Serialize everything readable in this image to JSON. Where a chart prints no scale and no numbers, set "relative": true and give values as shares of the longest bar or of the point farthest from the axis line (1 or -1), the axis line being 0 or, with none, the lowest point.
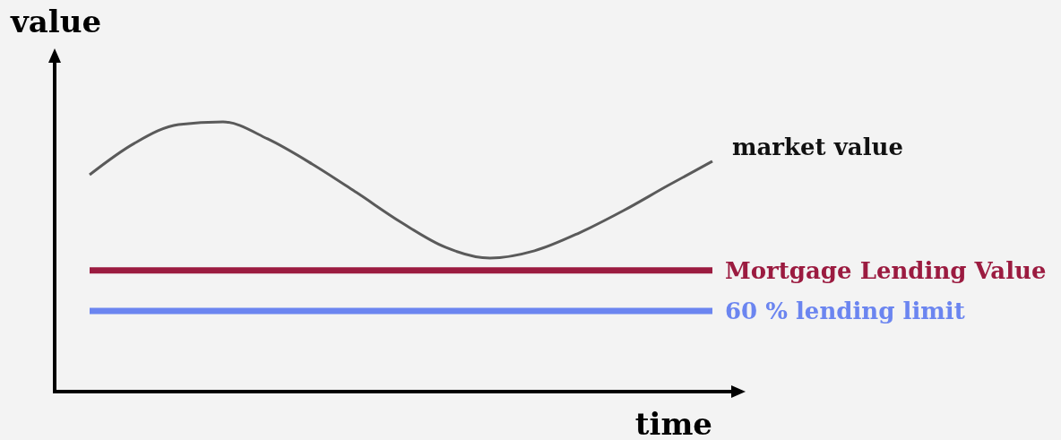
{
  "chart_data": {
    "type": "line",
    "relative": true,
    "xlabel": "time",
    "ylabel": "value",
    "categories": [
      null,
      null,
      null,
      null,
      null,
      null,
      null,
      null,
      null,
      null,
      null,
      null,
      null,
      null,
      null
    ],
    "series": [
      {
        "name": "market value",
        "color": "#5a5a5a",
        "values": [
          0.804,
          0.92,
          0.99,
          1,
          0.937,
          0.844,
          0.738,
          0.628,
          0.535,
          0.495,
          0.522,
          0.588,
          0.671,
          0.764,
          0.854
        ]
      },
      {
        "name": "Mortgage Lending Value",
        "color": "#9b1b40",
        "values": [
          0.449,
          0.449,
          0.449,
          0.449,
          0.449,
          0.449,
          0.449,
          0.449,
          0.449,
          0.449,
          0.449,
          0.449,
          0.449,
          0.449,
          0.449
        ]
      },
      {
        "name": "60 % lending limit",
        "color": "#6b85f0",
        "values": [
          0.299,
          0.299,
          0.299,
          0.299,
          0.299,
          0.299,
          0.299,
          0.299,
          0.299,
          0.299,
          0.299,
          0.299,
          0.299,
          0.299,
          0.299
        ]
      }
    ]
  }
}
